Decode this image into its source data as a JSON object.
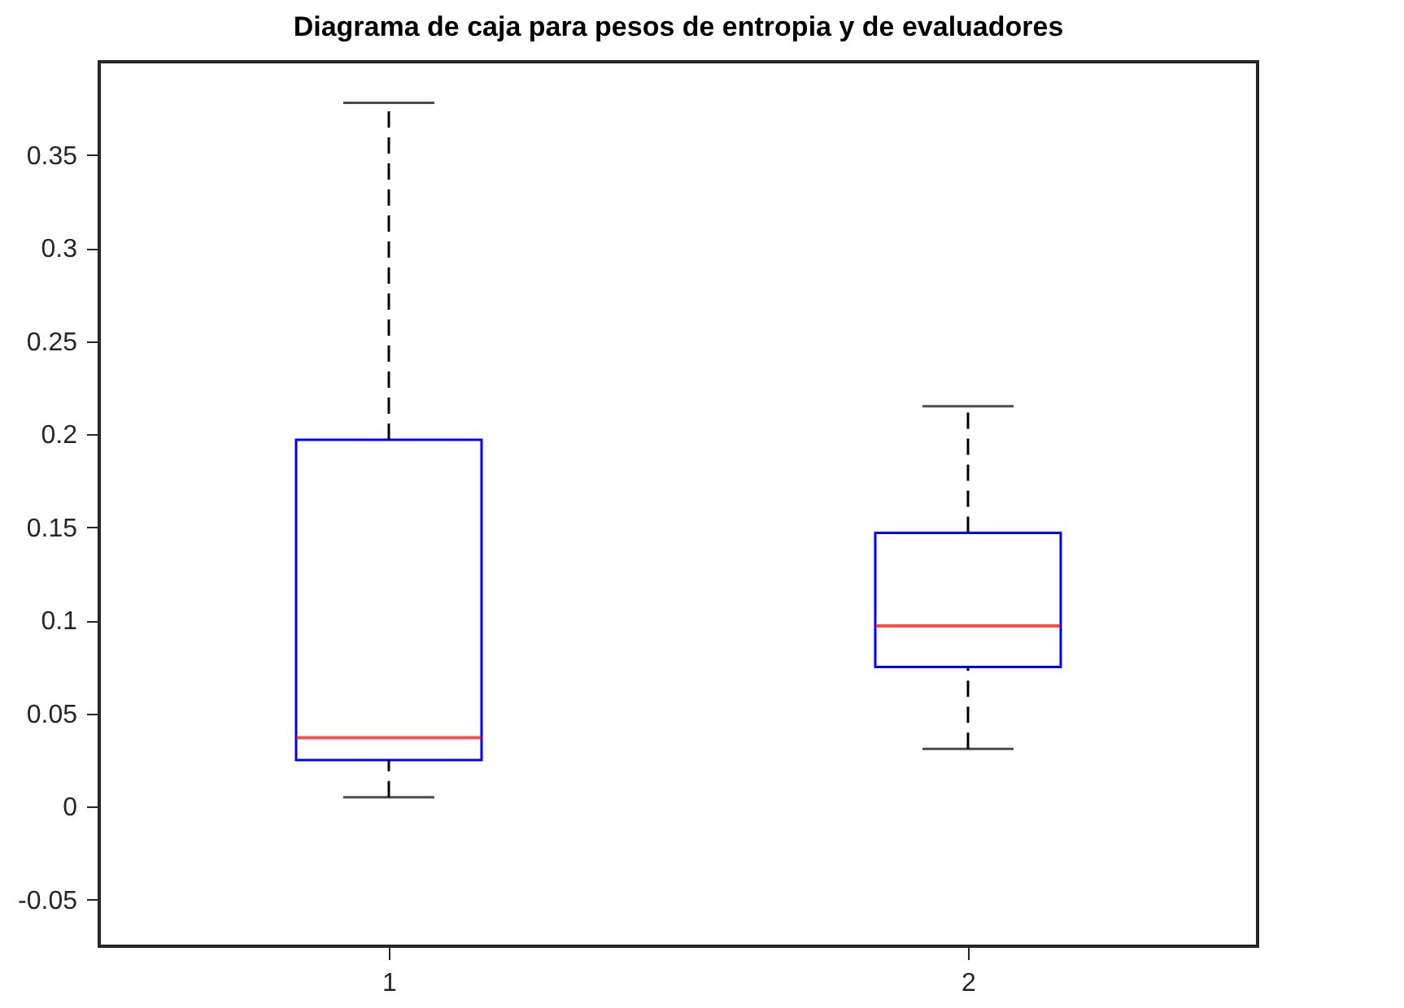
{
  "chart_data": {
    "type": "box",
    "title": "Diagrama de caja para pesos de entropia y de evaluadores",
    "categories": [
      "1",
      "2"
    ],
    "boxes": [
      {
        "low": 0.005,
        "q1": 0.025,
        "median": 0.037,
        "q3": 0.197,
        "high": 0.378
      },
      {
        "low": 0.031,
        "q1": 0.075,
        "median": 0.097,
        "q3": 0.147,
        "high": 0.215
      }
    ],
    "color": "#0000ff",
    "ylim": [
      -0.075,
      0.4
    ],
    "yticks": [
      -0.05,
      0,
      0.05,
      0.1,
      0.15,
      0.2,
      0.25,
      0.3,
      0.35
    ],
    "line_style": "dashed",
    "grid": false
  }
}
